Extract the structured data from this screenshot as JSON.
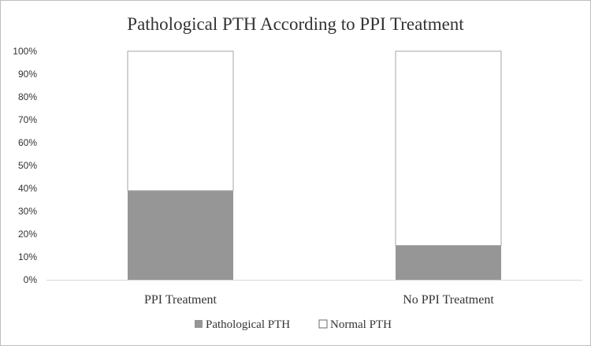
{
  "chart_data": {
    "type": "bar",
    "stacked": true,
    "title": "Pathological PTH According to PPI Treatment",
    "xlabel": "",
    "ylabel": "",
    "categories": [
      "PPI Treatment",
      "No PPI Treatment"
    ],
    "series": [
      {
        "name": "Pathological PTH",
        "values": [
          39,
          15
        ],
        "color": "#969696"
      },
      {
        "name": "Normal PTH",
        "values": [
          61,
          85
        ],
        "color": "#ffffff"
      }
    ],
    "ylim": [
      0,
      100
    ],
    "yticks": [
      "0%",
      "10%",
      "20%",
      "30%",
      "40%",
      "50%",
      "60%",
      "70%",
      "80%",
      "90%",
      "100%"
    ],
    "grid": false,
    "legend_position": "bottom"
  }
}
